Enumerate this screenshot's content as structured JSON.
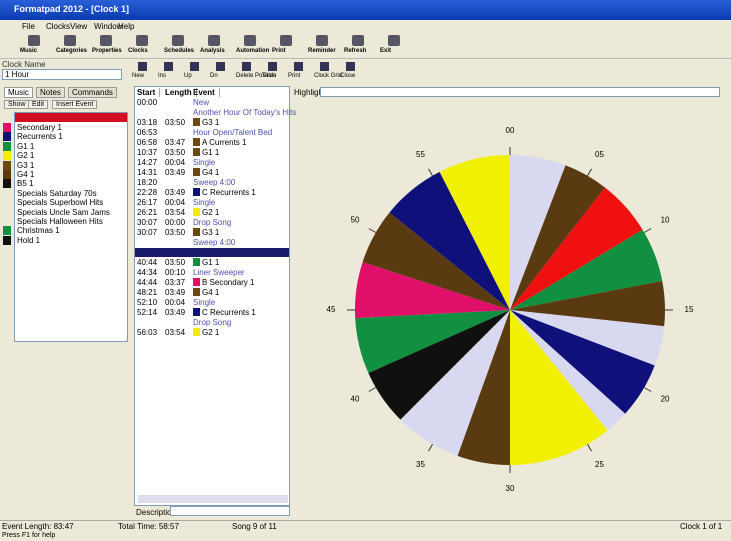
{
  "window": {
    "title": "Formatpad 2012 - [Clock 1]"
  },
  "menu": [
    "File",
    "Clocks",
    "View",
    "Window",
    "Help"
  ],
  "toolbar": [
    "Music",
    "Categories",
    "Properties",
    "Clocks",
    "Schedules",
    "Analysis",
    "Automation",
    "Print",
    "Reminder",
    "Refresh",
    "Exit"
  ],
  "clock_toolbar": [
    "New",
    "Ins",
    "Up",
    "Dn",
    "Delete Position",
    "Tools",
    "Print",
    "Clock Grid",
    "Close"
  ],
  "clock_name": {
    "label": "Clock Name",
    "value": "1 Hour"
  },
  "tabs": [
    "Music",
    "Notes",
    "Commands"
  ],
  "buttons": [
    "Show",
    "Edit",
    "Insert Event"
  ],
  "categories": [
    {
      "name": "Secondary 1",
      "color": "#e0106a"
    },
    {
      "name": "Recurrents 1",
      "color": "#10107a"
    },
    {
      "name": "G1 1",
      "color": "#109040"
    },
    {
      "name": "G2 1",
      "color": "#f0f000"
    },
    {
      "name": "G3 1",
      "color": "#6a4a10"
    },
    {
      "name": "G4 1",
      "color": "#5a3a10"
    },
    {
      "name": "B5 1",
      "color": "#101010"
    },
    {
      "name": "Specials Saturday 70s"
    },
    {
      "name": "Specials Superbowl Hits"
    },
    {
      "name": "Specials Uncle Sam Jams"
    },
    {
      "name": "Specials Halloween Hits"
    },
    {
      "name": "Christmas 1",
      "color": "#109040"
    },
    {
      "name": "Hold 1",
      "color": "#101010"
    }
  ],
  "events": {
    "columns": [
      "Start",
      "Length",
      "Event"
    ],
    "rows": [
      {
        "start": "00:00",
        "event": "New"
      },
      {
        "event": "Another Hour Of Today's Hits"
      },
      {
        "start": "03:18",
        "length": "03:50",
        "event": "G3 1",
        "color": "#6a4a10"
      },
      {
        "start": "06:53",
        "event": "Hour Open/Talent Bed"
      },
      {
        "start": "06:58",
        "length": "03:47",
        "event": "A Currents 1",
        "color": "#6a4a10"
      },
      {
        "start": "10:37",
        "length": "03:50",
        "event": "G1 1",
        "color": "#6a4a10"
      },
      {
        "start": "14:27",
        "length": "00:04",
        "event": "Single"
      },
      {
        "start": "14:31",
        "length": "03:49",
        "event": "G4 1",
        "color": "#6a4a10"
      },
      {
        "start": "18:20",
        "event": "Sweep 4:00"
      },
      {
        "start": "22:28",
        "length": "03:49",
        "event": "C Recurrents 1",
        "color": "#10107a"
      },
      {
        "start": "26:17",
        "length": "00:04",
        "event": "Single"
      },
      {
        "start": "26:21",
        "length": "03:54",
        "event": "G2 1",
        "color": "#f0f000"
      },
      {
        "start": "30:07",
        "length": "00:00",
        "event": "Drop Song"
      },
      {
        "start": "30:07",
        "length": "03:50",
        "event": "G3 1",
        "color": "#6a4a10"
      },
      {
        "event": "Sweep 4:00"
      },
      {
        "selected": true
      },
      {
        "start": "40:44",
        "length": "03:50",
        "event": "G1 1",
        "color": "#109040"
      },
      {
        "start": "44:34",
        "length": "00:10",
        "event": "Liner Sweeper"
      },
      {
        "start": "44:44",
        "length": "03:37",
        "event": "B Secondary 1",
        "color": "#e0106a"
      },
      {
        "start": "48:21",
        "length": "03:49",
        "event": "G4 1",
        "color": "#6a4a10"
      },
      {
        "start": "52:10",
        "length": "00:04",
        "event": "Single"
      },
      {
        "start": "52:14",
        "length": "03:49",
        "event": "C Recurrents 1",
        "color": "#10107a"
      },
      {
        "event": "Drop Song"
      },
      {
        "start": "56:03",
        "length": "03:54",
        "event": "G2 1",
        "color": "#f0f000"
      }
    ]
  },
  "highlight_label": "Highlight",
  "description_label": "Description",
  "status": [
    "Event Length: 83:47",
    "Total Time: 58:57",
    "Song 9 of 11",
    "Clock 1 of 1"
  ],
  "help": "Press F1 for help",
  "clock": {
    "labels": [
      "00",
      "05",
      "10",
      "15",
      "20",
      "25",
      "30",
      "35",
      "40",
      "45",
      "50",
      "55"
    ],
    "segments": [
      {
        "start": 0,
        "end": 3.5,
        "color": "#d8d8f0"
      },
      {
        "start": 3.5,
        "end": 6.3,
        "color": "#5a3a10"
      },
      {
        "start": 6.3,
        "end": 9.8,
        "color": "#f01010"
      },
      {
        "start": 9.8,
        "end": 13.2,
        "color": "#109040"
      },
      {
        "start": 13.2,
        "end": 16,
        "color": "#5a3a10"
      },
      {
        "start": 16,
        "end": 18.5,
        "color": "#d8d8f0"
      },
      {
        "start": 18.5,
        "end": 22,
        "color": "#10107a"
      },
      {
        "start": 22,
        "end": 23.5,
        "color": "#d8d8f0"
      },
      {
        "start": 23.5,
        "end": 30,
        "color": "#f0f000"
      },
      {
        "start": 30,
        "end": 33.3,
        "color": "#5a3a10"
      },
      {
        "start": 33.3,
        "end": 37.5,
        "color": "#d8d8f0"
      },
      {
        "start": 37.5,
        "end": 41,
        "color": "#101010"
      },
      {
        "start": 41,
        "end": 44.5,
        "color": "#109040"
      },
      {
        "start": 44.5,
        "end": 48,
        "color": "#e0106a"
      },
      {
        "start": 48,
        "end": 51.5,
        "color": "#5a3a10"
      },
      {
        "start": 51.5,
        "end": 55.5,
        "color": "#10107a"
      },
      {
        "start": 55.5,
        "end": 60,
        "color": "#f0f000"
      }
    ]
  }
}
